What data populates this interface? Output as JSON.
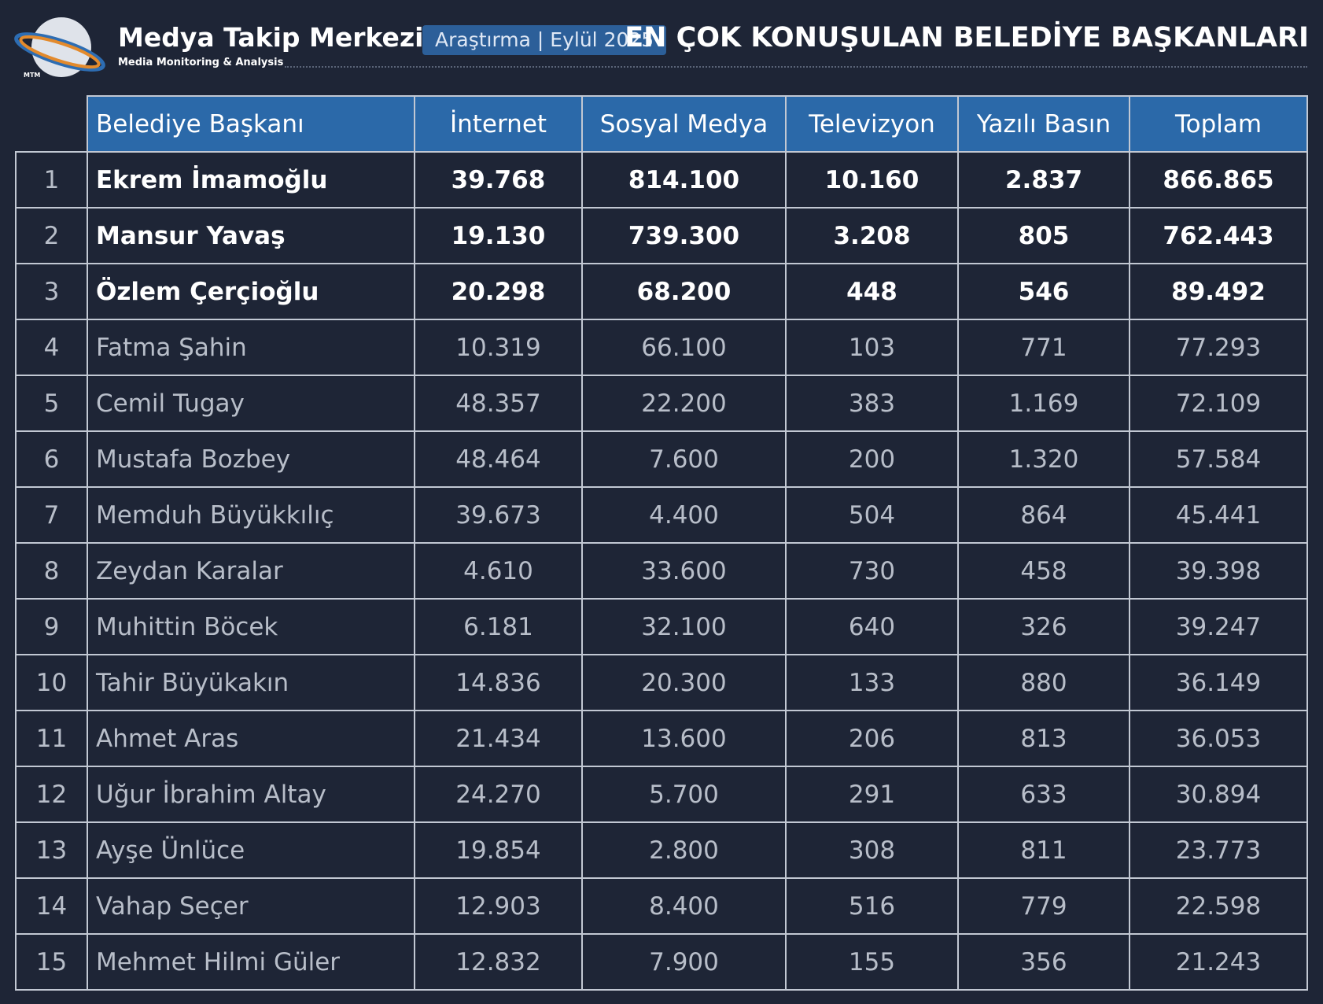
{
  "header": {
    "logo_text": "MTM",
    "brand": "Medya Takip Merkezi",
    "tagline": "Media Monitoring & Analysis",
    "badge": "Araştırma | Eylül 2025",
    "title": "EN ÇOK KONUŞULAN BELEDİYE BAŞKANLARI"
  },
  "table": {
    "columns": [
      "Belediye Başkanı",
      "İnternet",
      "Sosyal Medya",
      "Televizyon",
      "Yazılı Basın",
      "Toplam"
    ],
    "rows": [
      [
        "1",
        "Ekrem İmamoğlu",
        "39.768",
        "814.100",
        "10.160",
        "2.837",
        "866.865"
      ],
      [
        "2",
        "Mansur Yavaş",
        "19.130",
        "739.300",
        "3.208",
        "805",
        "762.443"
      ],
      [
        "3",
        "Özlem Çerçioğlu",
        "20.298",
        "68.200",
        "448",
        "546",
        "89.492"
      ],
      [
        "4",
        "Fatma Şahin",
        "10.319",
        "66.100",
        "103",
        "771",
        "77.293"
      ],
      [
        "5",
        "Cemil Tugay",
        "48.357",
        "22.200",
        "383",
        "1.169",
        "72.109"
      ],
      [
        "6",
        "Mustafa Bozbey",
        "48.464",
        "7.600",
        "200",
        "1.320",
        "57.584"
      ],
      [
        "7",
        "Memduh Büyükkılıç",
        "39.673",
        "4.400",
        "504",
        "864",
        "45.441"
      ],
      [
        "8",
        "Zeydan Karalar",
        "4.610",
        "33.600",
        "730",
        "458",
        "39.398"
      ],
      [
        "9",
        "Muhittin Böcek",
        "6.181",
        "32.100",
        "640",
        "326",
        "39.247"
      ],
      [
        "10",
        "Tahir Büyükakın",
        "14.836",
        "20.300",
        "133",
        "880",
        "36.149"
      ],
      [
        "11",
        "Ahmet Aras",
        "21.434",
        "13.600",
        "206",
        "813",
        "36.053"
      ],
      [
        "12",
        "Uğur İbrahim Altay",
        "24.270",
        "5.700",
        "291",
        "633",
        "30.894"
      ],
      [
        "13",
        "Ayşe Ünlüce",
        "19.854",
        "2.800",
        "308",
        "811",
        "23.773"
      ],
      [
        "14",
        "Vahap Seçer",
        "12.903",
        "8.400",
        "516",
        "779",
        "22.598"
      ],
      [
        "15",
        "Mehmet Hilmi Güler",
        "12.832",
        "7.900",
        "155",
        "356",
        "21.243"
      ]
    ]
  }
}
